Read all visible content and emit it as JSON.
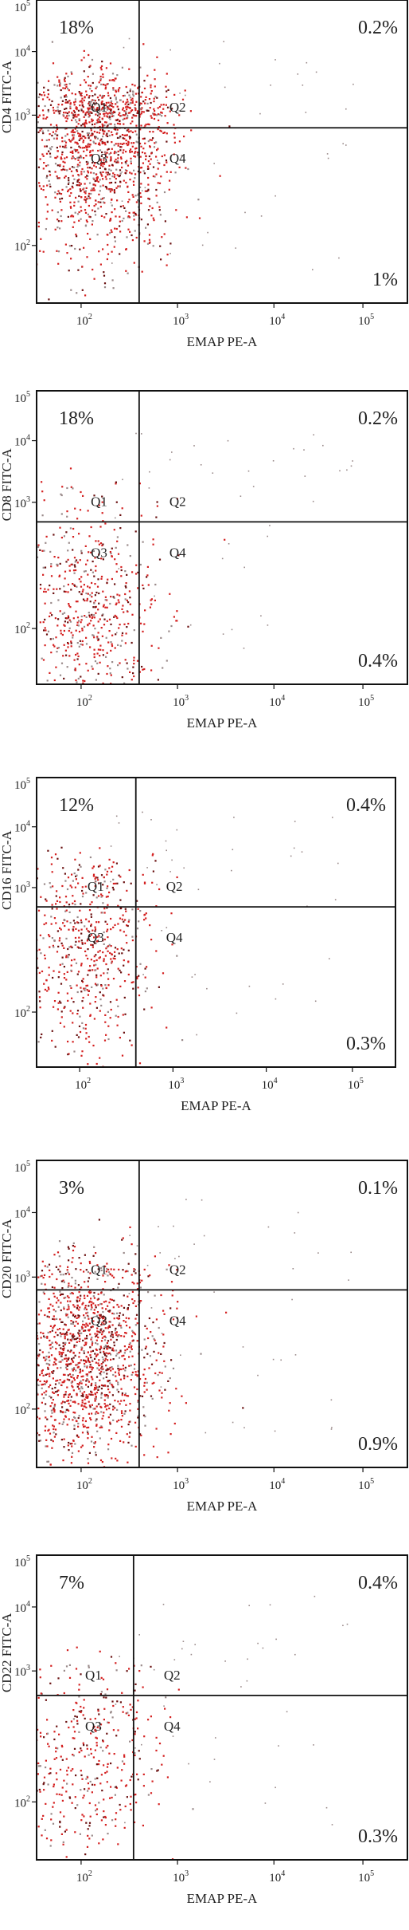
{
  "chart_data": [
    {
      "type": "scatter",
      "xlabel": "EMAP PE-A",
      "ylabel": "CD4 FITC-A",
      "xticks": [
        "10^2",
        "10^3",
        "10^4",
        "10^5"
      ],
      "yticks": [
        "10^2",
        "10^3",
        "10^4",
        "10^5"
      ],
      "quadrant_labels": [
        "Q1",
        "Q2",
        "Q3",
        "Q4"
      ],
      "percentages": {
        "Q1": "18%",
        "Q2": "0.2%",
        "Q4": "1%"
      },
      "gate": {
        "x": 400,
        "y": 800
      },
      "population_center": {
        "x": 150,
        "y": 600
      },
      "density": "high"
    },
    {
      "type": "scatter",
      "xlabel": "EMAP PE-A",
      "ylabel": "CD8 FITC-A",
      "xticks": [
        "10^2",
        "10^3",
        "10^4",
        "10^5"
      ],
      "yticks": [
        "10^2",
        "10^3",
        "10^4",
        "10^5"
      ],
      "quadrant_labels": [
        "Q1",
        "Q2",
        "Q3",
        "Q4"
      ],
      "percentages": {
        "Q1": "18%",
        "Q2": "0.2%",
        "Q4": "0.4%"
      },
      "gate": {
        "x": 400,
        "y": 700
      },
      "population_center": {
        "x": 110,
        "y": 150
      },
      "density": "medium"
    },
    {
      "type": "scatter",
      "xlabel": "EMAP PE-A",
      "ylabel": "CD16 FITC-A",
      "xticks": [
        "10^2",
        "10^3",
        "10^4",
        "10^5"
      ],
      "yticks": [
        "10^2",
        "10^3",
        "10^4",
        "10^5"
      ],
      "quadrant_labels": [
        "Q1",
        "Q2",
        "Q3",
        "Q4"
      ],
      "percentages": {
        "Q1": "12%",
        "Q2": "0.4%",
        "Q4": "0.3%"
      },
      "gate": {
        "x": 400,
        "y": 700
      },
      "population_center": {
        "x": 110,
        "y": 350
      },
      "density": "medium"
    },
    {
      "type": "scatter",
      "xlabel": "EMAP PE-A",
      "ylabel": "CD20 FITC-A",
      "xticks": [
        "10^2",
        "10^3",
        "10^4",
        "10^5"
      ],
      "yticks": [
        "10^2",
        "10^3",
        "10^4",
        "10^5"
      ],
      "quadrant_labels": [
        "Q1",
        "Q2",
        "Q3",
        "Q4"
      ],
      "percentages": {
        "Q1": "3%",
        "Q2": "0.1%",
        "Q4": "0.9%"
      },
      "gate": {
        "x": 400,
        "y": 800
      },
      "population_center": {
        "x": 110,
        "y": 250
      },
      "density": "high"
    },
    {
      "type": "scatter",
      "xlabel": "EMAP PE-A",
      "ylabel": "CD22 FITC-A",
      "xticks": [
        "10^2",
        "10^3",
        "10^4",
        "10^5"
      ],
      "yticks": [
        "10^2",
        "10^3",
        "10^4",
        "10^5"
      ],
      "quadrant_labels": [
        "Q1",
        "Q2",
        "Q3",
        "Q4"
      ],
      "percentages": {
        "Q1": "7%",
        "Q2": "0.4%",
        "Q4": "0.3%"
      },
      "gate": {
        "x": 350,
        "y": 650
      },
      "population_center": {
        "x": 110,
        "y": 200
      },
      "density": "low"
    }
  ],
  "colors": {
    "dot_red": "#d42020",
    "dot_dark": "#6a1010",
    "dot_grey": "#9a8a8a",
    "axis": "#111111"
  }
}
